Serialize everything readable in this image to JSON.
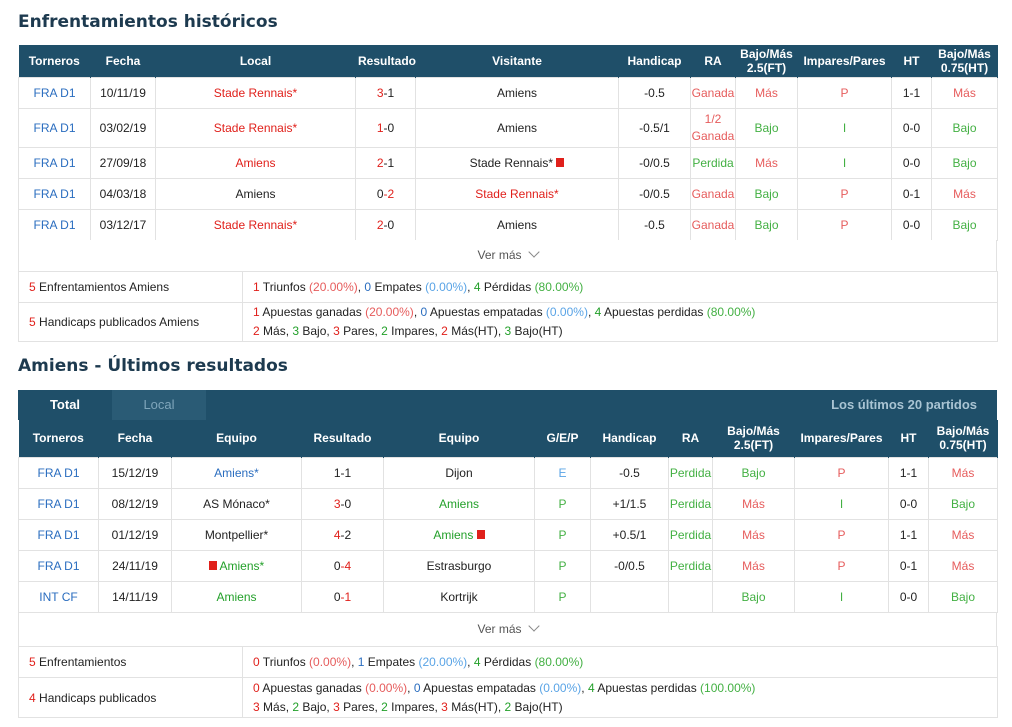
{
  "h2h": {
    "title": "Enfrentamientos históricos",
    "headers": [
      "Torneros",
      "Fecha",
      "Local",
      "Resultado",
      "Visitante",
      "Handicap",
      "RA",
      "Bajo/Más 2.5(FT)",
      "Impares/Pares",
      "HT",
      "Bajo/Más 0.75(HT)"
    ],
    "rows": [
      {
        "torneo": "FRA D1",
        "fecha": "10/11/19",
        "local": "Stade Rennais*",
        "local_color": "red",
        "res_a": "3",
        "res_b": "-1",
        "res_a_color": "red",
        "res_b_color": "",
        "visitante": "Amiens",
        "visitante_color": "",
        "hcp": "-0.5",
        "ra": "Ganada",
        "ra_color": "lred",
        "bm": "Más",
        "bm_color": "lred",
        "ip": "P",
        "ip_color": "lred",
        "ht": "1-1",
        "bm2": "Más",
        "bm2_color": "lred"
      },
      {
        "torneo": "FRA D1",
        "fecha": "03/02/19",
        "local": "Stade Rennais*",
        "local_color": "red",
        "res_a": "1",
        "res_b": "-0",
        "res_a_color": "red",
        "res_b_color": "",
        "visitante": "Amiens",
        "visitante_color": "",
        "hcp": "-0.5/1",
        "ra": "1/2 Ganada",
        "ra_color": "lred",
        "bm": "Bajo",
        "bm_color": "lgreen",
        "ip": "I",
        "ip_color": "lgreen",
        "ht": "0-0",
        "bm2": "Bajo",
        "bm2_color": "lgreen"
      },
      {
        "torneo": "FRA D1",
        "fecha": "27/09/18",
        "local": "Amiens",
        "local_color": "red",
        "res_a": "2",
        "res_b": "-1",
        "res_a_color": "red",
        "res_b_color": "",
        "visitante": "Stade Rennais*",
        "visitante_color": "",
        "hcp": "-0/0.5",
        "ra": "Perdida",
        "ra_color": "lgreen",
        "bm": "Más",
        "bm_color": "lred",
        "ip": "I",
        "ip_color": "lgreen",
        "ht": "0-0",
        "bm2": "Bajo",
        "bm2_color": "lgreen"
      },
      {
        "torneo": "FRA D1",
        "fecha": "04/03/18",
        "local": "Amiens",
        "local_color": "",
        "res_a": "0",
        "res_b": "-2",
        "res_a_color": "",
        "res_b_color": "red",
        "visitante": "Stade Rennais*",
        "visitante_color": "red",
        "hcp": "-0/0.5",
        "ra": "Ganada",
        "ra_color": "lred",
        "bm": "Bajo",
        "bm_color": "lgreen",
        "ip": "P",
        "ip_color": "lred",
        "ht": "0-1",
        "bm2": "Más",
        "bm2_color": "lred"
      },
      {
        "torneo": "FRA D1",
        "fecha": "03/12/17",
        "local": "Stade Rennais*",
        "local_color": "red",
        "res_a": "2",
        "res_b": "-0",
        "res_a_color": "red",
        "res_b_color": "",
        "visitante": "Amiens",
        "visitante_color": "",
        "hcp": "-0.5",
        "ra": "Ganada",
        "ra_color": "lred",
        "bm": "Bajo",
        "bm_color": "lgreen",
        "ip": "P",
        "ip_color": "lred",
        "ht": "0-0",
        "bm2": "Bajo",
        "bm2_color": "lgreen"
      }
    ],
    "more": "Ver más",
    "summary1_count": "5",
    "summary1_label": " Enfrentamientos Amiens",
    "summary1": {
      "n1": "1",
      "t1": " Triunfos ",
      "p1": "(20.00%)",
      "n2": "0",
      "t2": " Empates ",
      "p2": "(0.00%)",
      "n3": "4",
      "t3": " Pérdidas ",
      "p3": "(80.00%)"
    },
    "summary2_count": "5",
    "summary2_label": " Handicaps publicados Amiens",
    "summary2": {
      "n1": "1",
      "t1": " Apuestas ganadas ",
      "p1": "(20.00%)",
      "n2": "0",
      "t2": " Apuestas empatadas ",
      "p2": "(0.00%)",
      "n3": "4",
      "t3": " Apuestas perdidas ",
      "p3": "(80.00%)"
    },
    "summary2_line2": {
      "a": "2",
      "ta": " Más, ",
      "b": "3",
      "tb": " Bajo, ",
      "c": "3",
      "tc": " Pares, ",
      "d": "2",
      "td": " Impares, ",
      "e": "2",
      "te": " Más(HT), ",
      "f": "3",
      "tf": " Bajo(HT)"
    }
  },
  "recent": {
    "title": "Amiens - Últimos resultados",
    "tab_total": "Total",
    "tab_local": "Local",
    "tab_right": "Los últimos 20 partidos",
    "headers": [
      "Torneros",
      "Fecha",
      "Equipo",
      "Resultado",
      "Equipo",
      "G/E/P",
      "Handicap",
      "RA",
      "Bajo/Más 2.5(FT)",
      "Impares/Pares",
      "HT",
      "Bajo/Más 0.75(HT)"
    ],
    "rows": [
      {
        "torneo": "FRA D1",
        "fecha": "15/12/19",
        "home": "Amiens*",
        "home_color": "blue",
        "res_a": "1",
        "res_b": "-1",
        "res_a_color": "",
        "res_b_color": "",
        "away": "Dijon",
        "away_color": "",
        "gep": "E",
        "gep_color": "lblue",
        "hcp": "-0.5",
        "ra": "Perdida",
        "ra_color": "lgreen",
        "bm": "Bajo",
        "bm_color": "lgreen",
        "ip": "P",
        "ip_color": "lred",
        "ht": "1-1",
        "bm2": "Más",
        "bm2_color": "lred"
      },
      {
        "torneo": "FRA D1",
        "fecha": "08/12/19",
        "home": "AS Mónaco*",
        "home_color": "",
        "res_a": "3",
        "res_b": "-0",
        "res_a_color": "red",
        "res_b_color": "",
        "away": "Amiens",
        "away_color": "green",
        "gep": "P",
        "gep_color": "lgreen",
        "hcp": "+1/1.5",
        "ra": "Perdida",
        "ra_color": "lgreen",
        "bm": "Más",
        "bm_color": "lred",
        "ip": "I",
        "ip_color": "lgreen",
        "ht": "0-0",
        "bm2": "Bajo",
        "bm2_color": "lgreen"
      },
      {
        "torneo": "FRA D1",
        "fecha": "01/12/19",
        "home": "Montpellier*",
        "home_color": "",
        "res_a": "4",
        "res_b": "-2",
        "res_a_color": "red",
        "res_b_color": "",
        "away": "Amiens",
        "away_color": "green",
        "gep": "P",
        "gep_color": "lgreen",
        "hcp": "+0.5/1",
        "ra": "Perdida",
        "ra_color": "lgreen",
        "bm": "Más",
        "bm_color": "lred",
        "ip": "P",
        "ip_color": "lred",
        "ht": "1-1",
        "bm2": "Más",
        "bm2_color": "lred"
      },
      {
        "torneo": "FRA D1",
        "fecha": "24/11/19",
        "home": "Amiens*",
        "home_color": "green",
        "res_a": "0",
        "res_b": "-4",
        "res_a_color": "",
        "res_b_color": "red",
        "away": "Estrasburgo",
        "away_color": "",
        "gep": "P",
        "gep_color": "lgreen",
        "hcp": "-0/0.5",
        "ra": "Perdida",
        "ra_color": "lgreen",
        "bm": "Más",
        "bm_color": "lred",
        "ip": "P",
        "ip_color": "lred",
        "ht": "0-1",
        "bm2": "Más",
        "bm2_color": "lred"
      },
      {
        "torneo": "INT CF",
        "fecha": "14/11/19",
        "home": "Amiens",
        "home_color": "green",
        "res_a": "0",
        "res_b": "-1",
        "res_a_color": "",
        "res_b_color": "red",
        "away": "Kortrijk",
        "away_color": "",
        "gep": "P",
        "gep_color": "lgreen",
        "hcp": "",
        "ra": "",
        "ra_color": "",
        "bm": "Bajo",
        "bm_color": "lgreen",
        "ip": "I",
        "ip_color": "lgreen",
        "ht": "0-0",
        "bm2": "Bajo",
        "bm2_color": "lgreen"
      }
    ],
    "more": "Ver más",
    "summary1_count": "5",
    "summary1_label": " Enfrentamientos",
    "summary1": {
      "n1": "0",
      "t1": " Triunfos ",
      "p1": "(0.00%)",
      "n2": "1",
      "t2": " Empates ",
      "p2": "(20.00%)",
      "n3": "4",
      "t3": " Pérdidas ",
      "p3": "(80.00%)"
    },
    "summary2_count": "4",
    "summary2_label": " Handicaps publicados",
    "summary2": {
      "n1": "0",
      "t1": " Apuestas ganadas ",
      "p1": "(0.00%)",
      "n2": "0",
      "t2": " Apuestas empatadas ",
      "p2": "(0.00%)",
      "n3": "4",
      "t3": " Apuestas perdidas ",
      "p3": "(100.00%)"
    },
    "summary2_line2": {
      "a": "3",
      "ta": " Más, ",
      "b": "2",
      "tb": " Bajo, ",
      "c": "3",
      "tc": " Pares, ",
      "d": "2",
      "td": " Impares, ",
      "e": "3",
      "te": " Más(HT), ",
      "f": "2",
      "tf": " Bajo(HT)"
    }
  },
  "colors": {
    "header_bg": "#1f4f69",
    "red": "#e0201b",
    "blue": "#2a6dbf",
    "green": "#23a02a"
  },
  "icons": {
    "flag": "red-card-icon",
    "more": "chevron-down-icon"
  }
}
